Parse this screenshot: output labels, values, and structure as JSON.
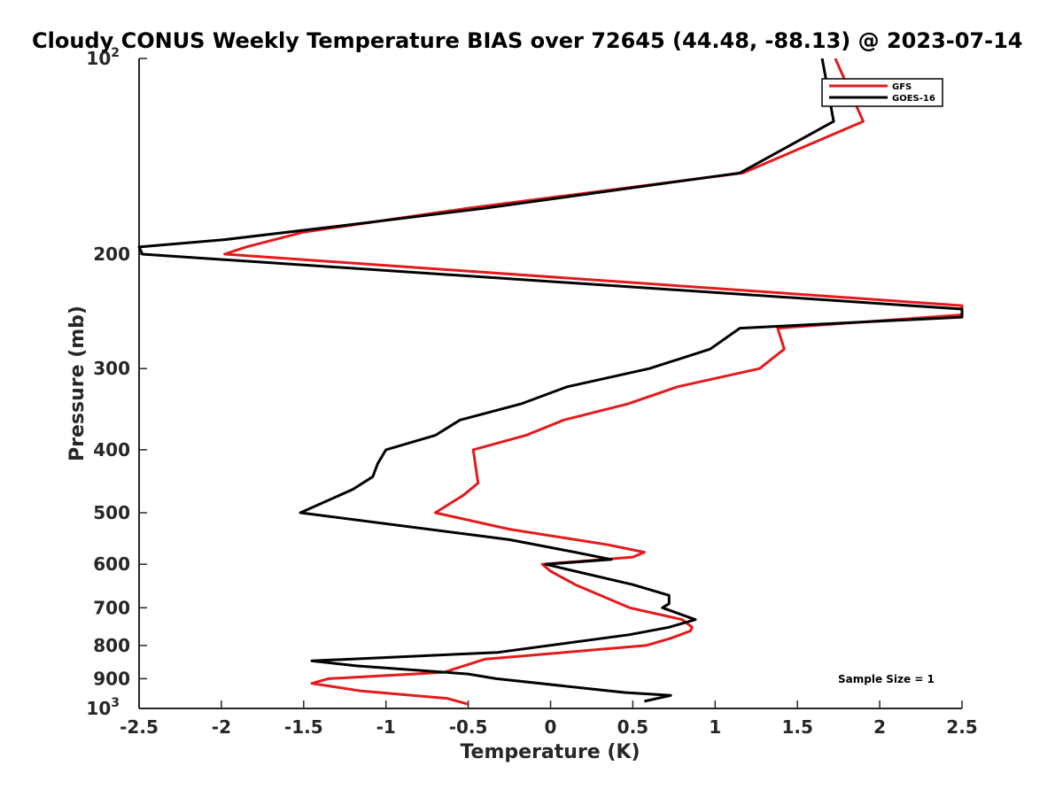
{
  "chart_data": {
    "type": "line",
    "title": "Cloudy CONUS Weekly Temperature BIAS over 72645 (44.48, -88.13) @ 2023-07-14",
    "xlabel": "Temperature (K)",
    "ylabel": "Pressure (mb)",
    "xlim": [
      -2.5,
      2.5
    ],
    "ylim": [
      100,
      1000
    ],
    "y_scale": "log",
    "y_reversed": true,
    "x_ticks": [
      -2.5,
      -2,
      -1.5,
      -1,
      -0.5,
      0,
      0.5,
      1,
      1.5,
      2,
      2.5
    ],
    "x_tick_labels": [
      "-2.5",
      "-2",
      "-1.5",
      "-1",
      "-0.5",
      "0",
      "0.5",
      "1",
      "1.5",
      "2",
      "2.5"
    ],
    "y_ticks": [
      100,
      200,
      300,
      400,
      500,
      600,
      700,
      800,
      900,
      1000
    ],
    "y_tick_labels": [
      {
        "value": 100,
        "base": "10",
        "exp": "2"
      },
      {
        "value": 200,
        "base": "200",
        "exp": ""
      },
      {
        "value": 300,
        "base": "300",
        "exp": ""
      },
      {
        "value": 400,
        "base": "400",
        "exp": ""
      },
      {
        "value": 500,
        "base": "500",
        "exp": ""
      },
      {
        "value": 600,
        "base": "600",
        "exp": ""
      },
      {
        "value": 700,
        "base": "700",
        "exp": ""
      },
      {
        "value": 800,
        "base": "800",
        "exp": ""
      },
      {
        "value": 900,
        "base": "900",
        "exp": ""
      },
      {
        "value": 1000,
        "base": "10",
        "exp": "3"
      }
    ],
    "legend_position": "top-right",
    "annotation": "Sample Size = 1",
    "series": [
      {
        "name": "GFS",
        "color": "#e41a1c",
        "points": [
          [
            1.73,
            100
          ],
          [
            1.9,
            125
          ],
          [
            1.17,
            150
          ],
          [
            -0.5,
            170
          ],
          [
            -1.5,
            185
          ],
          [
            -1.85,
            195
          ],
          [
            -1.98,
            200
          ],
          [
            2.5,
            240
          ],
          [
            2.5,
            248
          ],
          [
            1.38,
            260
          ],
          [
            1.42,
            280
          ],
          [
            1.27,
            300
          ],
          [
            0.77,
            320
          ],
          [
            0.47,
            340
          ],
          [
            0.08,
            360
          ],
          [
            -0.15,
            380
          ],
          [
            -0.47,
            400
          ],
          [
            -0.44,
            450
          ],
          [
            -0.53,
            470
          ],
          [
            -0.7,
            500
          ],
          [
            -0.25,
            530
          ],
          [
            0.35,
            560
          ],
          [
            0.57,
            575
          ],
          [
            0.5,
            585
          ],
          [
            -0.05,
            600
          ],
          [
            0.0,
            615
          ],
          [
            0.15,
            645
          ],
          [
            0.48,
            700
          ],
          [
            0.8,
            730
          ],
          [
            0.86,
            750
          ],
          [
            0.85,
            760
          ],
          [
            0.73,
            780
          ],
          [
            0.58,
            800
          ],
          [
            -0.4,
            840
          ],
          [
            -0.65,
            880
          ],
          [
            -1.35,
            900
          ],
          [
            -1.45,
            915
          ],
          [
            -1.15,
            940
          ],
          [
            -0.63,
            965
          ],
          [
            -0.5,
            985
          ]
        ]
      },
      {
        "name": "GOES-16",
        "color": "#000000",
        "points": [
          [
            1.65,
            100
          ],
          [
            1.72,
            125
          ],
          [
            1.15,
            150
          ],
          [
            -0.4,
            170
          ],
          [
            -1.2,
            180
          ],
          [
            -1.98,
            190
          ],
          [
            -2.5,
            195
          ],
          [
            -2.48,
            200
          ],
          [
            2.5,
            243
          ],
          [
            2.5,
            250
          ],
          [
            1.15,
            260
          ],
          [
            0.97,
            280
          ],
          [
            0.6,
            300
          ],
          [
            0.1,
            320
          ],
          [
            -0.18,
            340
          ],
          [
            -0.55,
            360
          ],
          [
            -0.7,
            380
          ],
          [
            -1.0,
            400
          ],
          [
            -1.05,
            420
          ],
          [
            -1.08,
            440
          ],
          [
            -1.2,
            460
          ],
          [
            -1.52,
            500
          ],
          [
            -0.25,
            550
          ],
          [
            0.15,
            575
          ],
          [
            0.37,
            590
          ],
          [
            -0.03,
            600
          ],
          [
            0.5,
            645
          ],
          [
            0.72,
            670
          ],
          [
            0.72,
            690
          ],
          [
            0.68,
            700
          ],
          [
            0.88,
            730
          ],
          [
            0.72,
            750
          ],
          [
            0.48,
            770
          ],
          [
            -0.32,
            820
          ],
          [
            -1.45,
            845
          ],
          [
            -1.18,
            860
          ],
          [
            -0.5,
            885
          ],
          [
            -0.33,
            900
          ],
          [
            0.45,
            945
          ],
          [
            0.73,
            955
          ],
          [
            0.57,
            975
          ]
        ]
      }
    ]
  }
}
